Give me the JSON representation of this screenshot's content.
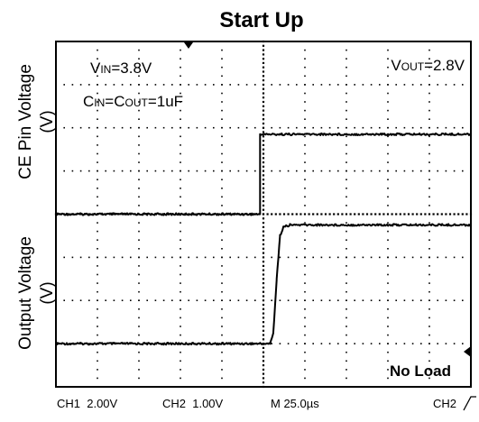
{
  "chart_data": {
    "type": "line",
    "title": "Start Up",
    "channels": [
      {
        "ylabel": "CE Pin Voltage",
        "unit": "(V)",
        "volts_per_div": 2.0
      },
      {
        "ylabel": "Output Voltage",
        "unit": "(V)",
        "volts_per_div": 1.0
      }
    ],
    "annotations": {
      "vin": {
        "pre": "V",
        "sub": "IN",
        "post": "=3.8V"
      },
      "vout": {
        "pre": "V",
        "sub": "OUT",
        "post": "=2.8V"
      },
      "caps": {
        "p1": "C",
        "s1": "IN",
        "p2": "=C",
        "s2": "OUT",
        "p3": "=1uF"
      },
      "load": "No Load"
    },
    "footer": {
      "ch1": "CH1  2.00V",
      "ch2": "CH2  1.00V",
      "time": "M 25.0µs",
      "trigger": "CH2",
      "trigger_edge": "rising"
    },
    "x": {
      "unit": "µs",
      "per_div": 25.0,
      "range": [
        -125,
        125
      ]
    },
    "grid": true,
    "series": [
      {
        "channel": 0,
        "points": [
          [
            -125,
            0.0
          ],
          [
            -2.0,
            0.0
          ],
          [
            -2.0,
            3.7
          ],
          [
            125,
            3.7
          ]
        ]
      },
      {
        "channel": 1,
        "points": [
          [
            -125,
            0.0
          ],
          [
            4.0,
            0.0
          ],
          [
            6.0,
            0.25
          ],
          [
            8.0,
            1.5
          ],
          [
            10.0,
            2.5
          ],
          [
            12.0,
            2.7
          ],
          [
            16.0,
            2.75
          ],
          [
            125,
            2.75
          ]
        ]
      }
    ]
  }
}
